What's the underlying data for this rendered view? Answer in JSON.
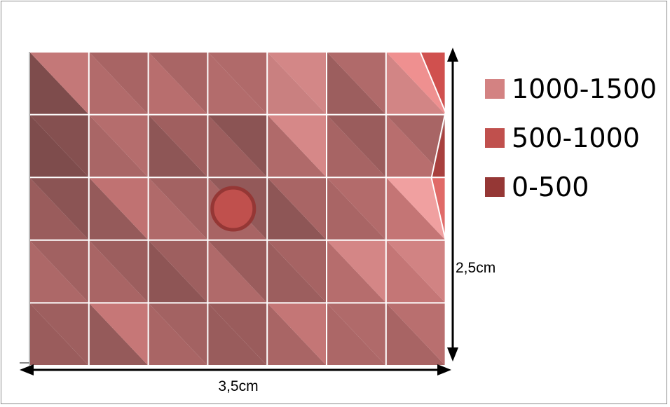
{
  "chart_data": {
    "type": "heatmap",
    "rows": 5,
    "cols": 7,
    "width_label": "3,5cm",
    "height_label": "2,5cm",
    "legend": [
      {
        "label": "1000-1500",
        "color": "#d38282"
      },
      {
        "label": "500-1000",
        "color": "#c0504d"
      },
      {
        "label": "0-500",
        "color": "#953735"
      }
    ],
    "marker": {
      "row": 2,
      "col": 3,
      "color": "#c0504d",
      "stroke": "#953735"
    },
    "cells": [
      [
        {
          "a": "#7e4c4c",
          "b": "#c47878"
        },
        {
          "a": "#b26b6b",
          "b": "#a86464"
        },
        {
          "a": "#b86e6e",
          "b": "#a96565"
        },
        {
          "a": "#b36c6c",
          "b": "#b06a6a"
        },
        {
          "a": "#c98080",
          "b": "#d38787"
        },
        {
          "a": "#9c5e5e",
          "b": "#b06a6a"
        },
        {
          "a": "#d28585",
          "b": "#ef9090"
        }
      ],
      [
        {
          "a": "#7e4c4c",
          "b": "#855050"
        },
        {
          "a": "#a96666",
          "b": "#b56d6d"
        },
        {
          "a": "#8e5656",
          "b": "#a05f5f"
        },
        {
          "a": "#9d5e5e",
          "b": "#8b5454"
        },
        {
          "a": "#b06a6a",
          "b": "#d68888"
        },
        {
          "a": "#a76464",
          "b": "#9a5c5c"
        },
        {
          "a": "#b86e6e",
          "b": "#a86565"
        }
      ],
      [
        {
          "a": "#9a5c5c",
          "b": "#8b5454"
        },
        {
          "a": "#955a5a",
          "b": "#c07272"
        },
        {
          "a": "#b06a6a",
          "b": "#a36262"
        },
        {
          "a": "#a86464",
          "b": "#935959"
        },
        {
          "a": "#8e5656",
          "b": "#a96565"
        },
        {
          "a": "#a96565",
          "b": "#b36b6b"
        },
        {
          "a": "#c47575",
          "b": "#f0a0a0"
        }
      ],
      [
        {
          "a": "#ad6868",
          "b": "#a16161"
        },
        {
          "a": "#a96565",
          "b": "#9c5e5e"
        },
        {
          "a": "#8e5555",
          "b": "#9e5f5f"
        },
        {
          "a": "#b06a6a",
          "b": "#9a5c5c"
        },
        {
          "a": "#9c5e5e",
          "b": "#a66363"
        },
        {
          "a": "#b66d6d",
          "b": "#d48686"
        },
        {
          "a": "#c47676",
          "b": "#d18383"
        }
      ],
      [
        {
          "a": "#9a5c5c",
          "b": "#9e5f5f"
        },
        {
          "a": "#955a5a",
          "b": "#c67777"
        },
        {
          "a": "#a96565",
          "b": "#a36262"
        },
        {
          "a": "#995c5c",
          "b": "#9a5c5c"
        },
        {
          "a": "#a96565",
          "b": "#c47676"
        },
        {
          "a": "#ac6767",
          "b": "#b06a6a"
        },
        {
          "a": "#a86464",
          "b": "#b96f6f"
        }
      ]
    ]
  }
}
